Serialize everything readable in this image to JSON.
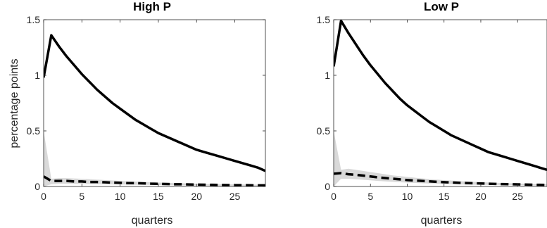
{
  "chart_data": [
    {
      "type": "line",
      "title": "High P",
      "xlabel": "quarters",
      "ylabel": "percentage points",
      "xlim": [
        0,
        29
      ],
      "ylim": [
        0,
        1.5
      ],
      "xticks": [
        "0",
        "5",
        "10",
        "15",
        "20",
        "25"
      ],
      "xtick_values": [
        0,
        5,
        10,
        15,
        20,
        25
      ],
      "yticks": [
        "0",
        "0.5",
        "1",
        "1.5"
      ],
      "ytick_values": [
        0,
        0.5,
        1,
        1.5
      ],
      "series": [
        {
          "style": "solid",
          "color": "#000000",
          "x": [
            0,
            1,
            2,
            3,
            4,
            5,
            6,
            7,
            8,
            9,
            10,
            11,
            12,
            13,
            14,
            15,
            16,
            17,
            18,
            19,
            20,
            21,
            22,
            23,
            24,
            25,
            26,
            27,
            28,
            29
          ],
          "y": [
            0.98,
            1.36,
            1.26,
            1.17,
            1.09,
            1.01,
            0.94,
            0.87,
            0.81,
            0.75,
            0.7,
            0.65,
            0.6,
            0.56,
            0.52,
            0.48,
            0.45,
            0.42,
            0.39,
            0.36,
            0.33,
            0.31,
            0.29,
            0.27,
            0.25,
            0.23,
            0.21,
            0.19,
            0.17,
            0.14
          ]
        },
        {
          "style": "dashed",
          "color": "#000000",
          "x": [
            0,
            1,
            2,
            3,
            4,
            5,
            6,
            7,
            8,
            9,
            10,
            11,
            12,
            13,
            14,
            15,
            16,
            17,
            18,
            19,
            20,
            21,
            22,
            23,
            24,
            25,
            26,
            27,
            28,
            29
          ],
          "y": [
            0.09,
            0.05,
            0.05,
            0.05,
            0.045,
            0.045,
            0.04,
            0.04,
            0.038,
            0.035,
            0.033,
            0.03,
            0.03,
            0.028,
            0.025,
            0.024,
            0.022,
            0.02,
            0.02,
            0.018,
            0.017,
            0.016,
            0.015,
            0.014,
            0.013,
            0.012,
            0.012,
            0.011,
            0.01,
            0.01
          ],
          "band_lower": [
            0.0,
            0.02,
            0.025,
            0.025,
            0.024,
            0.023,
            0.022,
            0.021,
            0.02,
            0.019,
            0.018,
            0.017,
            0.016,
            0.015,
            0.014,
            0.013,
            0.012,
            0.011,
            0.01,
            0.009,
            0.008,
            0.007,
            0.006,
            0.005,
            0.005,
            0.004,
            0.004,
            0.003,
            0.003,
            0.003
          ],
          "band_upper": [
            0.5,
            0.07,
            0.075,
            0.075,
            0.072,
            0.07,
            0.066,
            0.062,
            0.058,
            0.054,
            0.05,
            0.047,
            0.044,
            0.041,
            0.038,
            0.035,
            0.033,
            0.031,
            0.029,
            0.027,
            0.025,
            0.023,
            0.022,
            0.021,
            0.02,
            0.019,
            0.018,
            0.017,
            0.016,
            0.015
          ]
        }
      ]
    },
    {
      "type": "line",
      "title": "Low P",
      "xlabel": "quarters",
      "ylabel": "",
      "xlim": [
        0,
        29
      ],
      "ylim": [
        0,
        1.5
      ],
      "xticks": [
        "0",
        "5",
        "10",
        "15",
        "20",
        "25"
      ],
      "xtick_values": [
        0,
        5,
        10,
        15,
        20,
        25
      ],
      "yticks": [
        "0",
        "0.5",
        "1",
        "1.5"
      ],
      "ytick_values": [
        0,
        0.5,
        1,
        1.5
      ],
      "series": [
        {
          "style": "solid",
          "color": "#000000",
          "x": [
            0,
            1,
            2,
            3,
            4,
            5,
            6,
            7,
            8,
            9,
            10,
            11,
            12,
            13,
            14,
            15,
            16,
            17,
            18,
            19,
            20,
            21,
            22,
            23,
            24,
            25,
            26,
            27,
            28,
            29
          ],
          "y": [
            1.08,
            1.49,
            1.38,
            1.28,
            1.18,
            1.09,
            1.01,
            0.93,
            0.86,
            0.79,
            0.73,
            0.68,
            0.63,
            0.58,
            0.54,
            0.5,
            0.46,
            0.43,
            0.4,
            0.37,
            0.34,
            0.31,
            0.29,
            0.27,
            0.25,
            0.23,
            0.21,
            0.19,
            0.17,
            0.15
          ]
        },
        {
          "style": "dashed",
          "color": "#000000",
          "x": [
            0,
            1,
            2,
            3,
            4,
            5,
            6,
            7,
            8,
            9,
            10,
            11,
            12,
            13,
            14,
            15,
            16,
            17,
            18,
            19,
            20,
            21,
            22,
            23,
            24,
            25,
            26,
            27,
            28,
            29
          ],
          "y": [
            0.115,
            0.12,
            0.11,
            0.105,
            0.098,
            0.09,
            0.082,
            0.076,
            0.07,
            0.064,
            0.058,
            0.054,
            0.05,
            0.046,
            0.042,
            0.039,
            0.036,
            0.033,
            0.031,
            0.029,
            0.027,
            0.025,
            0.023,
            0.021,
            0.02,
            0.019,
            0.017,
            0.016,
            0.015,
            0.014
          ],
          "band_lower": [
            0.0,
            0.07,
            0.07,
            0.065,
            0.06,
            0.055,
            0.05,
            0.046,
            0.042,
            0.038,
            0.035,
            0.032,
            0.029,
            0.027,
            0.025,
            0.023,
            0.021,
            0.019,
            0.017,
            0.016,
            0.015,
            0.014,
            0.013,
            0.012,
            0.011,
            0.01,
            0.009,
            0.008,
            0.008,
            0.007
          ],
          "band_upper": [
            0.5,
            0.15,
            0.16,
            0.15,
            0.14,
            0.13,
            0.12,
            0.11,
            0.1,
            0.093,
            0.086,
            0.079,
            0.073,
            0.067,
            0.062,
            0.057,
            0.053,
            0.049,
            0.045,
            0.042,
            0.039,
            0.036,
            0.033,
            0.031,
            0.029,
            0.027,
            0.025,
            0.023,
            0.022,
            0.021
          ]
        }
      ]
    }
  ]
}
